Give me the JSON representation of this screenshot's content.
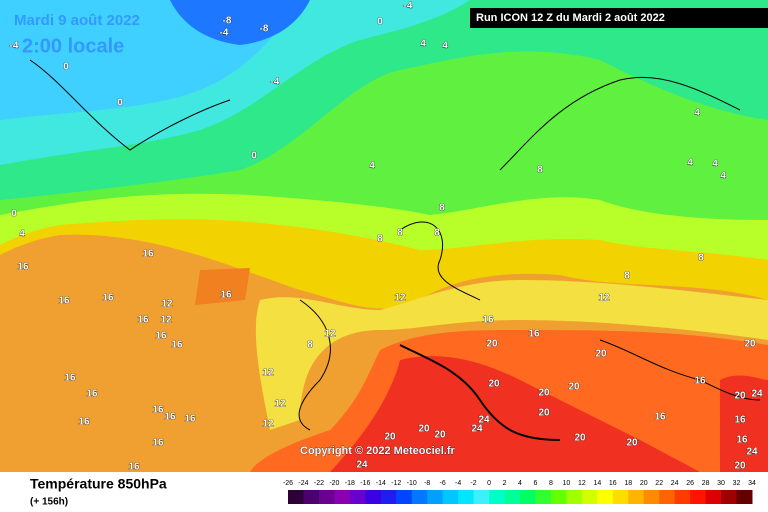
{
  "header": {
    "date": "Mardi 9 août 2022",
    "time": "2:00 locale",
    "run": "Run ICON 12 Z du Mardi 2 août 2022"
  },
  "copyright": "Copyright © 2022 Meteociel.fr",
  "footer": {
    "title": "Température 850hPa",
    "lead": "(+ 156h)"
  },
  "colorbar": {
    "labels": [
      -26,
      -24,
      -22,
      -20,
      -18,
      -16,
      -14,
      -12,
      -10,
      -8,
      -6,
      -4,
      -2,
      0,
      2,
      4,
      6,
      8,
      10,
      12,
      14,
      16,
      18,
      20,
      22,
      24,
      26,
      28,
      30,
      32,
      34
    ],
    "colors": [
      "#2d0039",
      "#4b006b",
      "#6a0090",
      "#8a00b0",
      "#6a00d0",
      "#3c00e6",
      "#1e1ef0",
      "#0046ff",
      "#0078ff",
      "#00a0ff",
      "#00c8ff",
      "#00e6ff",
      "#3cf0ff",
      "#00ffc8",
      "#00ff96",
      "#00ff64",
      "#32ff32",
      "#64ff00",
      "#a0ff00",
      "#d2ff00",
      "#ffff00",
      "#ffdc00",
      "#ffb400",
      "#ff8c00",
      "#ff6400",
      "#ff3c00",
      "#ff1400",
      "#dc0000",
      "#a00000",
      "#640000"
    ]
  },
  "map": {
    "contour_labels": [
      -4,
      -8,
      -8,
      -4,
      -4,
      0,
      0,
      0,
      -4,
      4,
      4,
      0,
      4,
      0,
      4,
      8,
      4,
      4,
      4,
      4,
      8,
      8,
      8,
      8,
      16,
      16,
      16,
      16,
      16,
      12,
      12,
      16,
      12,
      16,
      16,
      12,
      16,
      12,
      8,
      8,
      16,
      20,
      20,
      20,
      16,
      12,
      8,
      16,
      16,
      16,
      16,
      12,
      12,
      16,
      16,
      16,
      20,
      20,
      20,
      16,
      20,
      24,
      16,
      20,
      20,
      16,
      24,
      24,
      20,
      20,
      20,
      24,
      16,
      24,
      20,
      20
    ]
  }
}
